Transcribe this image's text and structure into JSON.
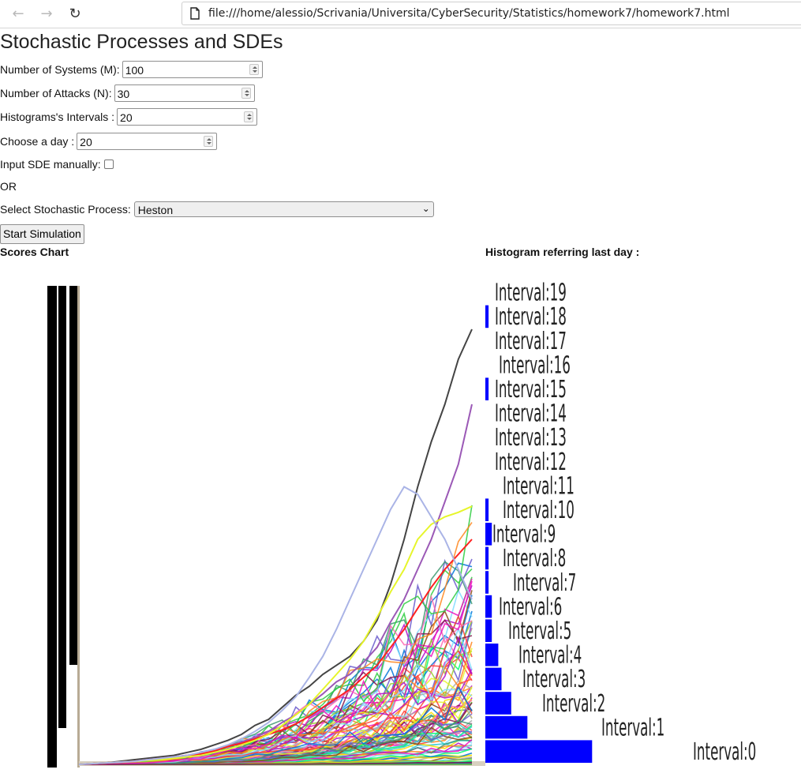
{
  "browser": {
    "url": "file:///home/alessio/Scrivania/Universita/CyberSecurity/Statistics/homework7/homework7.html",
    "back_icon": "←",
    "forward_icon": "→",
    "reload_icon": "↻"
  },
  "page": {
    "title": "Stochastic Processes and SDEs",
    "fields": {
      "systems": {
        "label": "Number of Systems (M):",
        "value": "100"
      },
      "attacks": {
        "label": "Number of Attacks (N):",
        "value": "30"
      },
      "intervals": {
        "label": "Histograms's Intervals :",
        "value": "20"
      },
      "day": {
        "label": "Choose a day :",
        "value": "20"
      }
    },
    "sde_manual_label": "Input SDE manually:",
    "or_text": "OR",
    "process": {
      "label": "Select Stochastic Process:",
      "selected": "Heston"
    },
    "start_button": "Start Simulation",
    "scores_chart_label": "Scores Chart",
    "histogram_label": "Histogram referring last day :"
  },
  "colors": {
    "hist_bar": "#0000ff",
    "axis": "#000000"
  },
  "chart_data": [
    {
      "type": "line",
      "title": "Scores Chart",
      "x_steps": 30,
      "series_count": 100,
      "highlight_series": [
        {
          "color": "#444444",
          "values": [
            0,
            0.5,
            1,
            2,
            3,
            4,
            5,
            6,
            8,
            10,
            13,
            16,
            20,
            26,
            30,
            38,
            46,
            52,
            60,
            66,
            72,
            82,
            96,
            120,
            150,
            185,
            215,
            240,
            270,
            290
          ]
        },
        {
          "color": "#9b59b6",
          "values": [
            0,
            0.5,
            1,
            1.5,
            2,
            3,
            4,
            5,
            6,
            8,
            10,
            12,
            15,
            18,
            22,
            28,
            33,
            40,
            47,
            55,
            60,
            68,
            78,
            95,
            110,
            130,
            150,
            175,
            200,
            240
          ]
        },
        {
          "color": "#ff2020",
          "values": [
            0,
            0.5,
            1,
            1.5,
            2,
            3,
            4,
            5,
            6,
            7,
            9,
            12,
            14,
            17,
            20,
            23,
            27,
            32,
            38,
            44,
            50,
            58,
            66,
            78,
            90,
            104,
            118,
            130,
            140,
            150
          ]
        },
        {
          "color": "#e6f52a",
          "values": [
            0,
            0.5,
            1,
            1.5,
            2,
            2.5,
            3,
            4,
            5,
            6,
            8,
            10,
            13,
            16,
            20,
            26,
            33,
            40,
            50,
            60,
            70,
            82,
            98,
            115,
            130,
            150,
            160,
            165,
            168,
            172
          ]
        },
        {
          "color": "#aab4e6",
          "values": [
            0,
            0.5,
            1,
            1.5,
            2,
            3,
            4,
            5,
            6,
            8,
            10,
            13,
            17,
            22,
            28,
            36,
            45,
            58,
            72,
            90,
            110,
            130,
            150,
            170,
            185,
            180,
            165,
            150,
            130,
            110
          ]
        }
      ]
    },
    {
      "type": "bar",
      "title": "Histogram referring last day :",
      "categories": [
        "Interval:0",
        "Interval:1",
        "Interval:2",
        "Interval:3",
        "Interval:4",
        "Interval:5",
        "Interval:6",
        "Interval:7",
        "Interval:8",
        "Interval:9",
        "Interval:10",
        "Interval:11",
        "Interval:12",
        "Interval:13",
        "Interval:14",
        "Interval:15",
        "Interval:16",
        "Interval:17",
        "Interval:18",
        "Interval:19"
      ],
      "values": [
        33,
        13,
        8,
        5,
        4,
        2,
        2,
        1,
        1,
        2,
        1,
        0,
        0,
        0,
        0,
        1,
        0,
        0,
        1,
        0
      ]
    }
  ]
}
